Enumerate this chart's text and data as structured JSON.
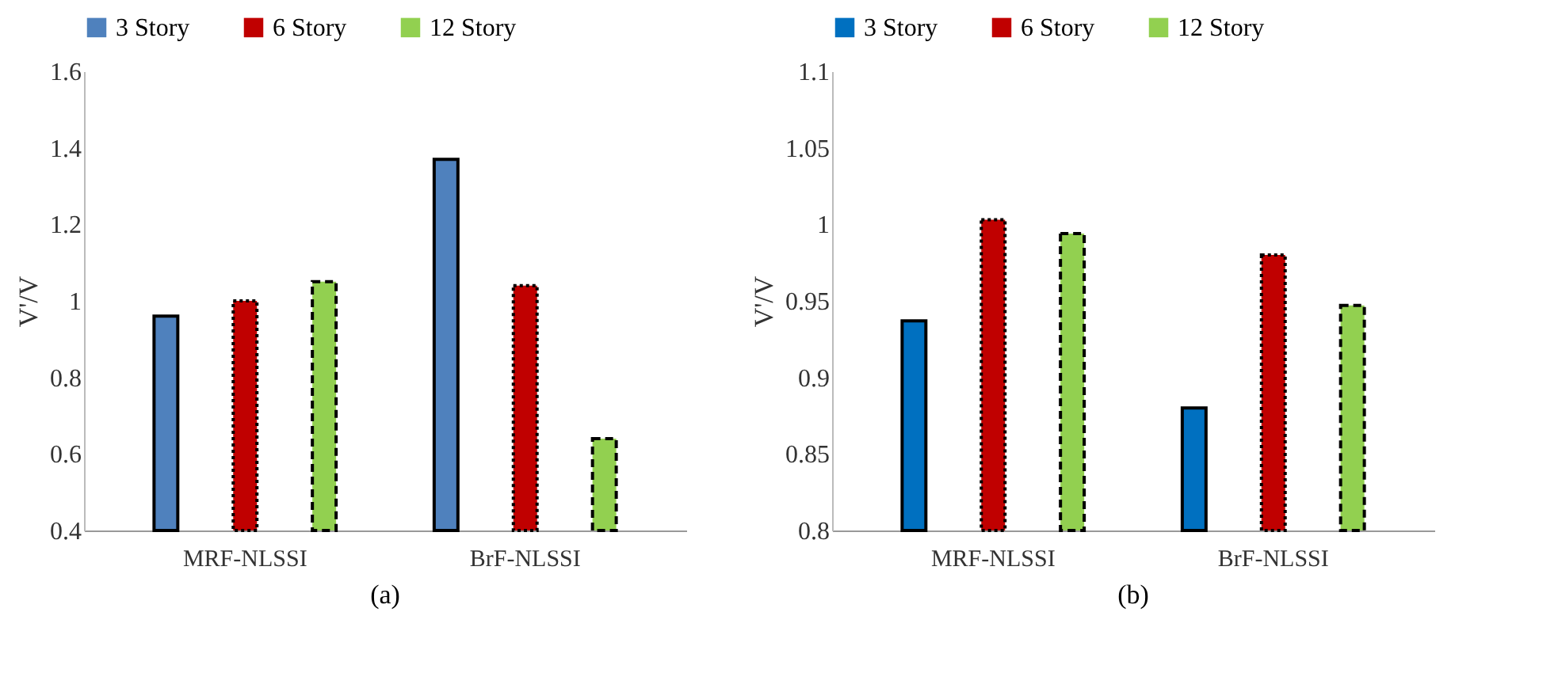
{
  "chart_data": [
    {
      "type": "bar",
      "ylabel": "V'/V",
      "categories": [
        "MRF-NLSSI",
        "BrF-NLSSI"
      ],
      "ylim": [
        0.4,
        1.6
      ],
      "yticks": [
        0.4,
        0.6,
        0.8,
        1,
        1.2,
        1.4,
        1.6
      ],
      "legend": "top",
      "grid": false,
      "annotations": [
        "(a)"
      ],
      "series": [
        {
          "name": "3 Story",
          "color": "#4f81bd",
          "line_style": "solid",
          "values": [
            0.96,
            1.37
          ]
        },
        {
          "name": "6 Story",
          "color": "#c00000",
          "line_style": "dotted",
          "values": [
            1.0,
            1.04
          ]
        },
        {
          "name": "12 Story",
          "color": "#92d050",
          "line_style": "dashed",
          "values": [
            1.05,
            0.64
          ]
        }
      ]
    },
    {
      "type": "bar",
      "ylabel": "V'/V",
      "categories": [
        "MRF-NLSSI",
        "BrF-NLSSI"
      ],
      "ylim": [
        0.8,
        1.1
      ],
      "yticks": [
        0.8,
        0.85,
        0.9,
        0.95,
        1,
        1.05,
        1.1
      ],
      "legend": "top",
      "grid": false,
      "annotations": [
        "(b)"
      ],
      "series": [
        {
          "name": "3 Story",
          "color": "#0070c0",
          "line_style": "solid",
          "values": [
            0.937,
            0.88
          ]
        },
        {
          "name": "6 Story",
          "color": "#c00000",
          "line_style": "dotted",
          "values": [
            1.003,
            0.98
          ]
        },
        {
          "name": "12 Story",
          "color": "#92d050",
          "line_style": "dashed",
          "values": [
            0.994,
            0.947
          ]
        }
      ]
    }
  ]
}
